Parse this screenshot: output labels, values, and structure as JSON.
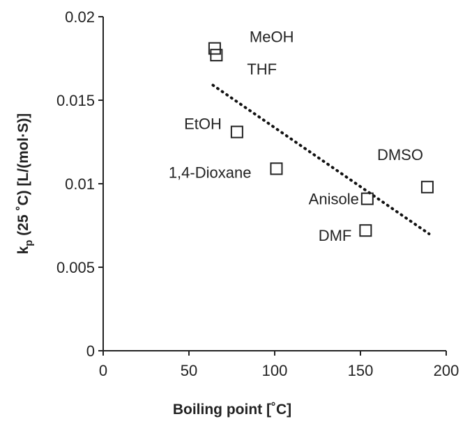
{
  "chart_data": {
    "type": "scatter",
    "xlabel": "Boiling point [˚C]",
    "ylabel": {
      "prefix": "k",
      "subscript": "p",
      "suffix": " (25 ˚C) [L/(mol·S)]"
    },
    "xlim": [
      0,
      200
    ],
    "ylim": [
      0,
      0.02
    ],
    "x_ticks": [
      "0",
      "50",
      "100",
      "150",
      "200"
    ],
    "y_ticks": [
      "0",
      "0.005",
      "0.01",
      "0.015",
      "0.02"
    ],
    "grid": false,
    "marker": "open-square",
    "points": [
      {
        "label": "MeOH",
        "x": 65,
        "y": 0.0181
      },
      {
        "label": "THF",
        "x": 66,
        "y": 0.0177
      },
      {
        "label": "EtOH",
        "x": 78,
        "y": 0.0131
      },
      {
        "label": "1,4-Dioxane",
        "x": 101,
        "y": 0.0109
      },
      {
        "label": "DMSO",
        "x": 189,
        "y": 0.0098
      },
      {
        "label": "Anisole",
        "x": 154,
        "y": 0.0091
      },
      {
        "label": "DMF",
        "x": 153,
        "y": 0.0072
      }
    ],
    "trendline": {
      "style": "dotted",
      "x": [
        64,
        190
      ],
      "y": [
        0.0159,
        0.007
      ]
    }
  }
}
